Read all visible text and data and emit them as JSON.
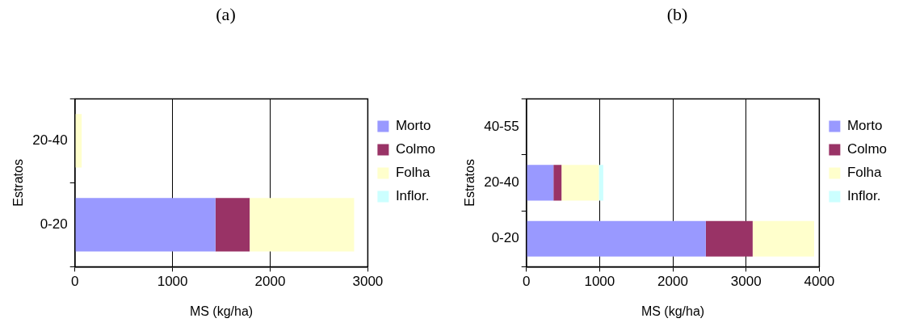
{
  "chart_data": [
    {
      "type": "bar",
      "title": "(a)",
      "orientation": "horizontal",
      "stacked": true,
      "xlabel": "MS (kg/ha)",
      "ylabel": "Estratos",
      "categories": [
        "20-40",
        "0-20"
      ],
      "series": [
        {
          "name": "Morto",
          "color": "#9999ff",
          "values": [
            0,
            1440
          ]
        },
        {
          "name": "Colmo",
          "color": "#993366",
          "values": [
            0,
            350
          ]
        },
        {
          "name": "Folha",
          "color": "#ffffcc",
          "values": [
            70,
            1070
          ]
        },
        {
          "name": "Inflor.",
          "color": "#ccffff",
          "values": [
            0,
            0
          ]
        }
      ],
      "xlim": [
        0,
        3000
      ],
      "xticks": [
        0,
        1000,
        2000,
        3000
      ],
      "grid": "x",
      "legend": "right"
    },
    {
      "type": "bar",
      "title": "(b)",
      "orientation": "horizontal",
      "stacked": true,
      "xlabel": "MS (kg/ha)",
      "ylabel": "Estratos",
      "categories": [
        "40-55",
        "20-40",
        "0-20"
      ],
      "series": [
        {
          "name": "Morto",
          "color": "#9999ff",
          "values": [
            0,
            370,
            2450
          ]
        },
        {
          "name": "Colmo",
          "color": "#993366",
          "values": [
            0,
            110,
            640
          ]
        },
        {
          "name": "Folha",
          "color": "#ffffcc",
          "values": [
            null,
            510,
            840
          ]
        },
        {
          "name": "Inflor.",
          "color": "#ccffff",
          "values": [
            0,
            60,
            0
          ]
        }
      ],
      "xlim": [
        0,
        4000
      ],
      "xticks": [
        0,
        1000,
        2000,
        3000,
        4000
      ],
      "grid": "x",
      "legend": "right"
    }
  ]
}
